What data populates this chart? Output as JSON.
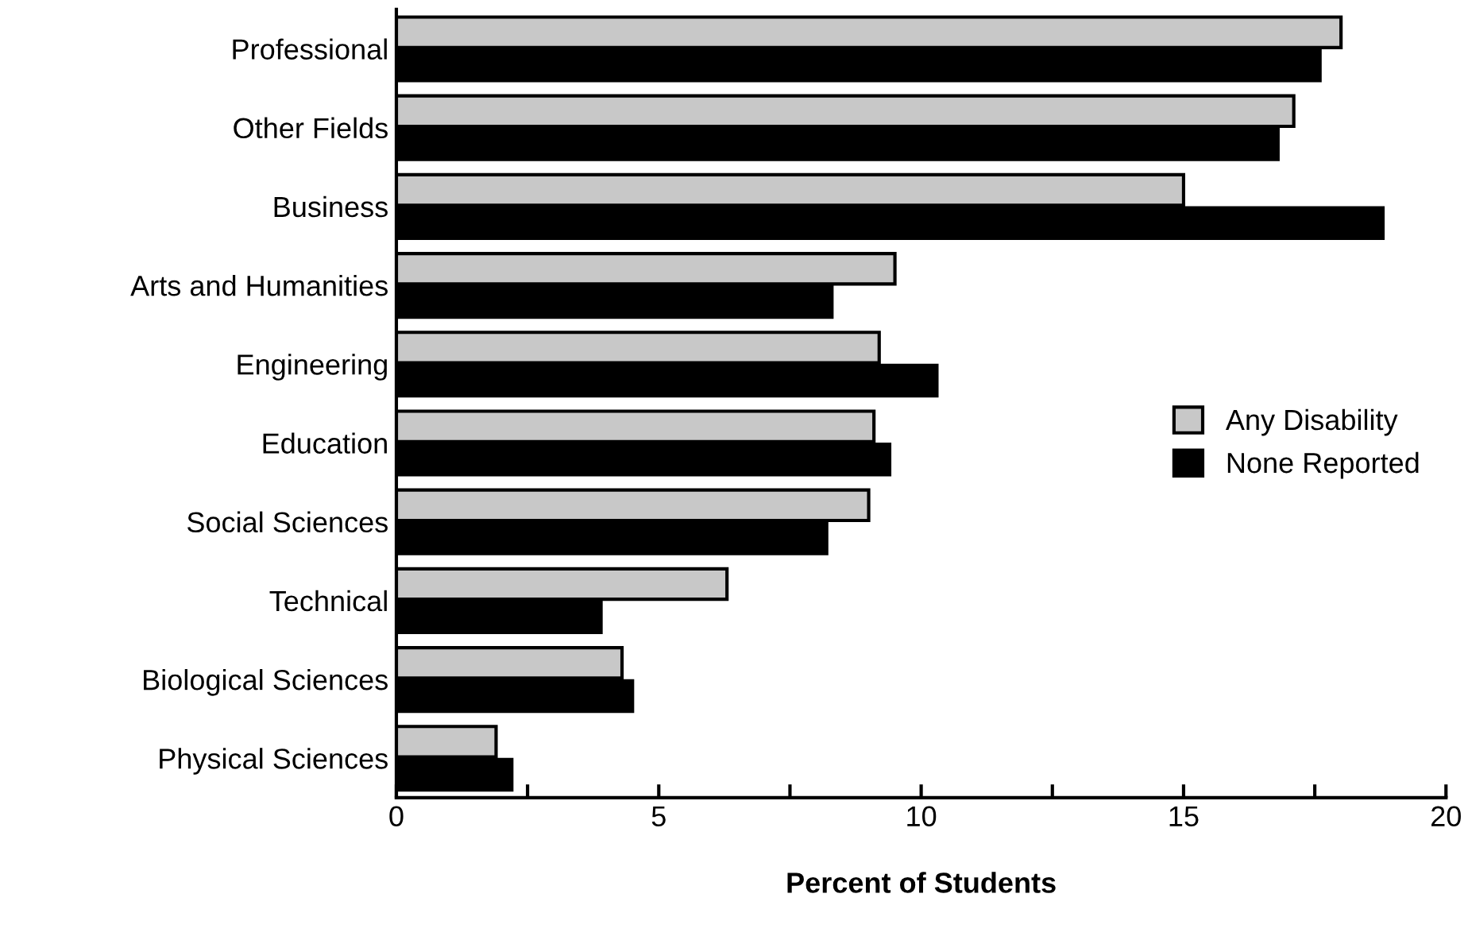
{
  "chart_data": {
    "type": "bar",
    "orientation": "horizontal",
    "xlabel": "Percent of Students",
    "categories": [
      "Professional",
      "Other Fields",
      "Business",
      "Arts and Humanities",
      "Engineering",
      "Education",
      "Social Sciences",
      "Technical",
      "Biological Sciences",
      "Physical Sciences"
    ],
    "series": [
      {
        "name": "Any Disability",
        "color": "#c8c8c8",
        "values": [
          18.0,
          17.1,
          15.0,
          9.5,
          9.2,
          9.1,
          9.0,
          6.3,
          4.3,
          1.9
        ]
      },
      {
        "name": "None Reported",
        "color": "#000000",
        "values": [
          17.6,
          16.8,
          18.8,
          8.3,
          10.3,
          9.4,
          8.2,
          3.9,
          4.5,
          2.2
        ]
      }
    ],
    "xlim": [
      0,
      20
    ],
    "xticks": [
      0,
      {
        "value": 2.5,
        "label": null
      },
      5,
      {
        "value": 7.5,
        "label": null
      },
      10,
      {
        "value": 12.5,
        "label": null
      },
      15,
      {
        "value": 17.5,
        "label": null
      },
      20
    ],
    "grid": false,
    "legend": "right"
  }
}
